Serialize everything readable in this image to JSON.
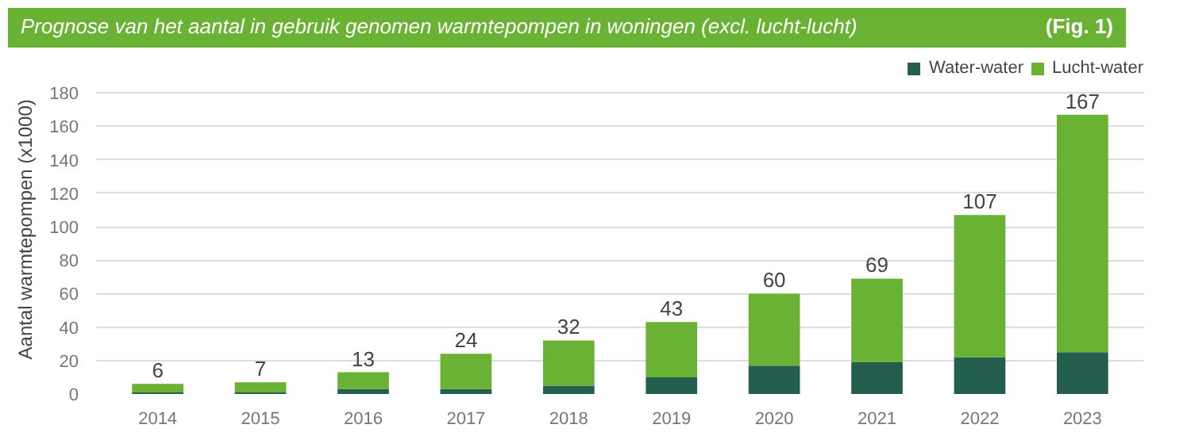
{
  "chart_data": {
    "type": "bar",
    "title": "Prognose van het aantal in gebruik genomen warmtepompen in woningen (excl. lucht-lucht)",
    "annotations": [
      "(Fig. 1)"
    ],
    "ylabel": "Aantal  warmtepompen (x1000)",
    "categories": [
      "2014",
      "2015",
      "2016",
      "2017",
      "2018",
      "2019",
      "2020",
      "2021",
      "2022",
      "2023"
    ],
    "stacked": true,
    "series": [
      {
        "name": "Water-water",
        "color": "#245e4f",
        "values": [
          1,
          1,
          3,
          3,
          5,
          10,
          17,
          19,
          22,
          25
        ]
      },
      {
        "name": "Lucht-water",
        "color": "#6ab233",
        "values": [
          5,
          6,
          10,
          21,
          27,
          33,
          43,
          50,
          85,
          142
        ]
      }
    ],
    "totals": [
      "6",
      "7",
      "13",
      "24",
      "32",
      "43",
      "60",
      "69",
      "107",
      "167"
    ],
    "ylim": [
      0,
      200
    ],
    "yticks": [
      0,
      20,
      40,
      60,
      80,
      100,
      120,
      140,
      160,
      180
    ],
    "grid": "y",
    "legend": "top right"
  }
}
